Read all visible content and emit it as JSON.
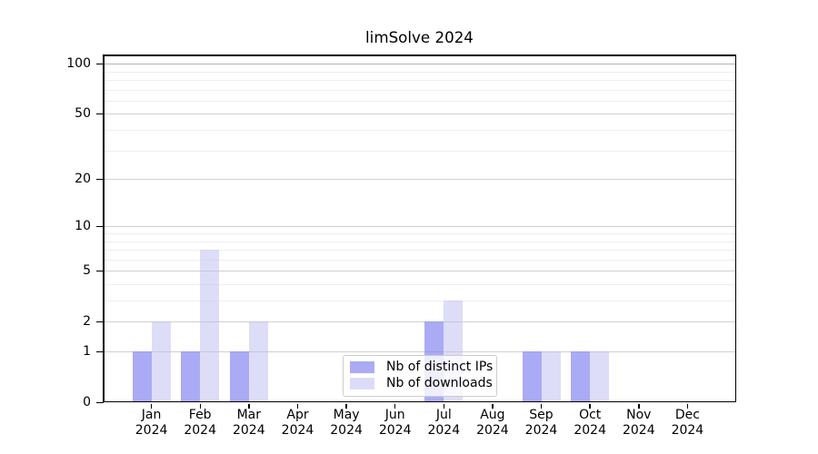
{
  "chart_data": {
    "type": "bar",
    "title": "limSolve 2024",
    "categories": [
      "Jan",
      "Feb",
      "Mar",
      "Apr",
      "May",
      "Jun",
      "Jul",
      "Aug",
      "Sep",
      "Oct",
      "Nov",
      "Dec"
    ],
    "year_label": "2024",
    "series": [
      {
        "name": "Nb of distinct IPs",
        "color": "#ababf3",
        "fill": "rgba(143,143,241,0.75)",
        "values": [
          1,
          1,
          1,
          0,
          0,
          0,
          2,
          0,
          1,
          1,
          0,
          0
        ]
      },
      {
        "name": "Nb of downloads",
        "color": "#dcdcf8",
        "fill": "rgba(187,187,242,0.5)",
        "values": [
          2,
          7,
          2,
          0,
          0,
          0,
          3,
          0,
          1,
          1,
          0,
          0
        ]
      }
    ],
    "xlabel": "",
    "ylabel": "",
    "y_scale": "log10(1+y)",
    "y_major_ticks": [
      0,
      1,
      2,
      5,
      10,
      20,
      50,
      100
    ],
    "y_minor_ticks": [
      3,
      4,
      6,
      7,
      8,
      9,
      30,
      40,
      60,
      70,
      80,
      90
    ],
    "ylim": [
      0,
      113
    ],
    "grid": true,
    "legend_position": "inside-bottom-center"
  }
}
